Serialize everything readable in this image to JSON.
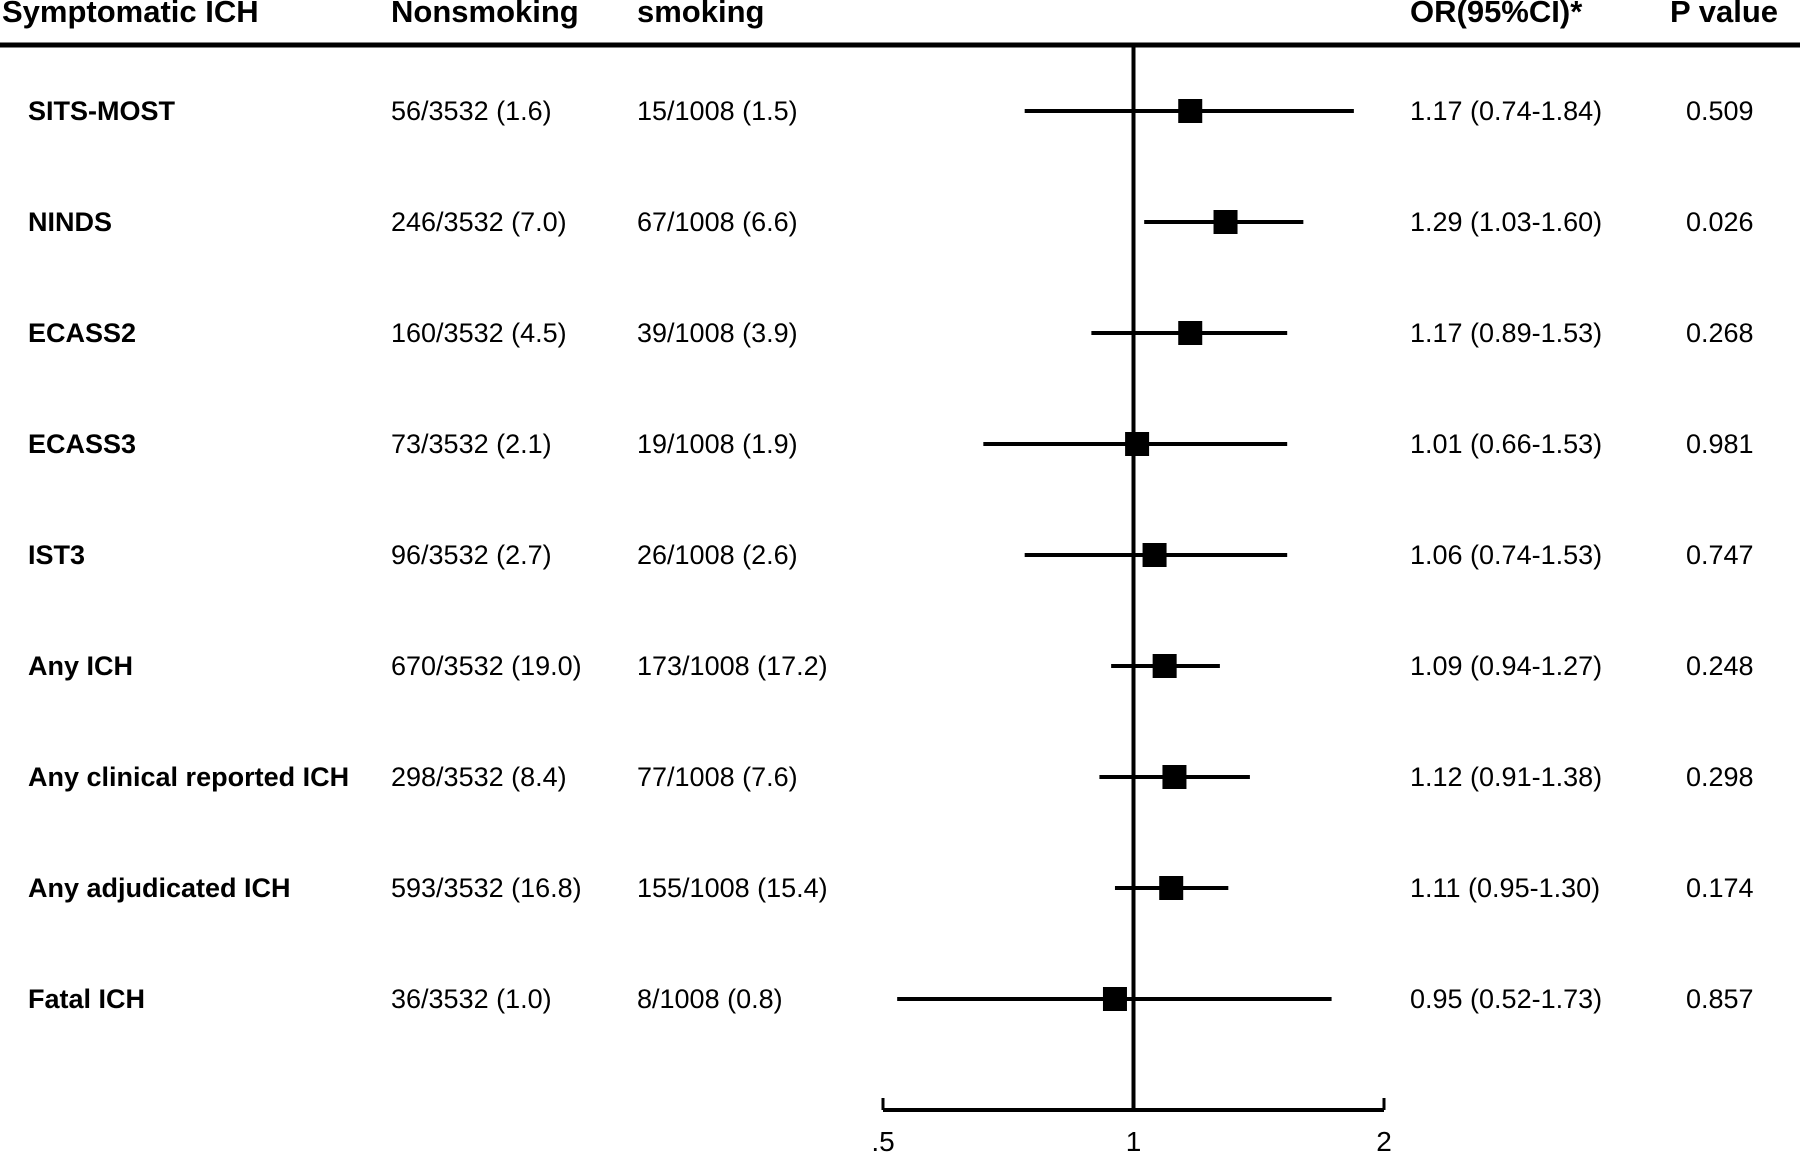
{
  "table": {
    "headers": {
      "outcome": "Symptomatic ICH",
      "nonsmoking": "Nonsmoking",
      "smoking": "smoking",
      "or": "OR(95%CI)*",
      "p": "P value"
    },
    "rows": [
      {
        "label": "SITS-MOST",
        "nonsmoking": "56/3532 (1.6)",
        "smoking": "15/1008 (1.5)",
        "or_text": "1.17 (0.74-1.84)",
        "p": "0.509"
      },
      {
        "label": "NINDS",
        "nonsmoking": "246/3532 (7.0)",
        "smoking": "67/1008 (6.6)",
        "or_text": "1.29 (1.03-1.60)",
        "p": "0.026"
      },
      {
        "label": "ECASS2",
        "nonsmoking": "160/3532 (4.5)",
        "smoking": "39/1008 (3.9)",
        "or_text": "1.17 (0.89-1.53)",
        "p": "0.268"
      },
      {
        "label": "ECASS3",
        "nonsmoking": "73/3532 (2.1)",
        "smoking": "19/1008 (1.9)",
        "or_text": "1.01 (0.66-1.53)",
        "p": "0.981"
      },
      {
        "label": "IST3",
        "nonsmoking": "96/3532 (2.7)",
        "smoking": "26/1008 (2.6)",
        "or_text": "1.06 (0.74-1.53)",
        "p": "0.747"
      },
      {
        "label": "Any ICH",
        "nonsmoking": "670/3532 (19.0)",
        "smoking": "173/1008 (17.2)",
        "or_text": "1.09 (0.94-1.27)",
        "p": "0.248"
      },
      {
        "label": "Any clinical reported ICH",
        "nonsmoking": "298/3532 (8.4)",
        "smoking": "77/1008 (7.6)",
        "or_text": "1.12 (0.91-1.38)",
        "p": "0.298"
      },
      {
        "label": "Any adjudicated ICH",
        "nonsmoking": "593/3532 (16.8)",
        "smoking": "155/1008 (15.4)",
        "or_text": "1.11 (0.95-1.30)",
        "p": "0.174"
      },
      {
        "label": "Fatal ICH",
        "nonsmoking": "36/3532 (1.0)",
        "smoking": "8/1008 (0.8)",
        "or_text": "0.95 (0.52-1.73)",
        "p": "0.857"
      }
    ]
  },
  "chart_data": {
    "type": "forest",
    "x_scale": "log",
    "xlim": [
      0.5,
      2
    ],
    "ticks": [
      {
        "value": 0.5,
        "label": ".5"
      },
      {
        "value": 1,
        "label": "1"
      },
      {
        "value": 2,
        "label": "2"
      }
    ],
    "reference_line": 1,
    "points": [
      {
        "label": "SITS-MOST",
        "or": 1.17,
        "lo": 0.74,
        "hi": 1.84
      },
      {
        "label": "NINDS",
        "or": 1.29,
        "lo": 1.03,
        "hi": 1.6
      },
      {
        "label": "ECASS2",
        "or": 1.17,
        "lo": 0.89,
        "hi": 1.53
      },
      {
        "label": "ECASS3",
        "or": 1.01,
        "lo": 0.66,
        "hi": 1.53
      },
      {
        "label": "IST3",
        "or": 1.06,
        "lo": 0.74,
        "hi": 1.53
      },
      {
        "label": "Any ICH",
        "or": 1.09,
        "lo": 0.94,
        "hi": 1.27
      },
      {
        "label": "Any clinical reported ICH",
        "or": 1.12,
        "lo": 0.91,
        "hi": 1.38
      },
      {
        "label": "Any adjudicated ICH",
        "or": 1.11,
        "lo": 0.95,
        "hi": 1.3
      },
      {
        "label": "Fatal ICH",
        "or": 0.95,
        "lo": 0.52,
        "hi": 1.73
      }
    ],
    "colors": {
      "ink": "#000000",
      "background": "#ffffff"
    }
  }
}
